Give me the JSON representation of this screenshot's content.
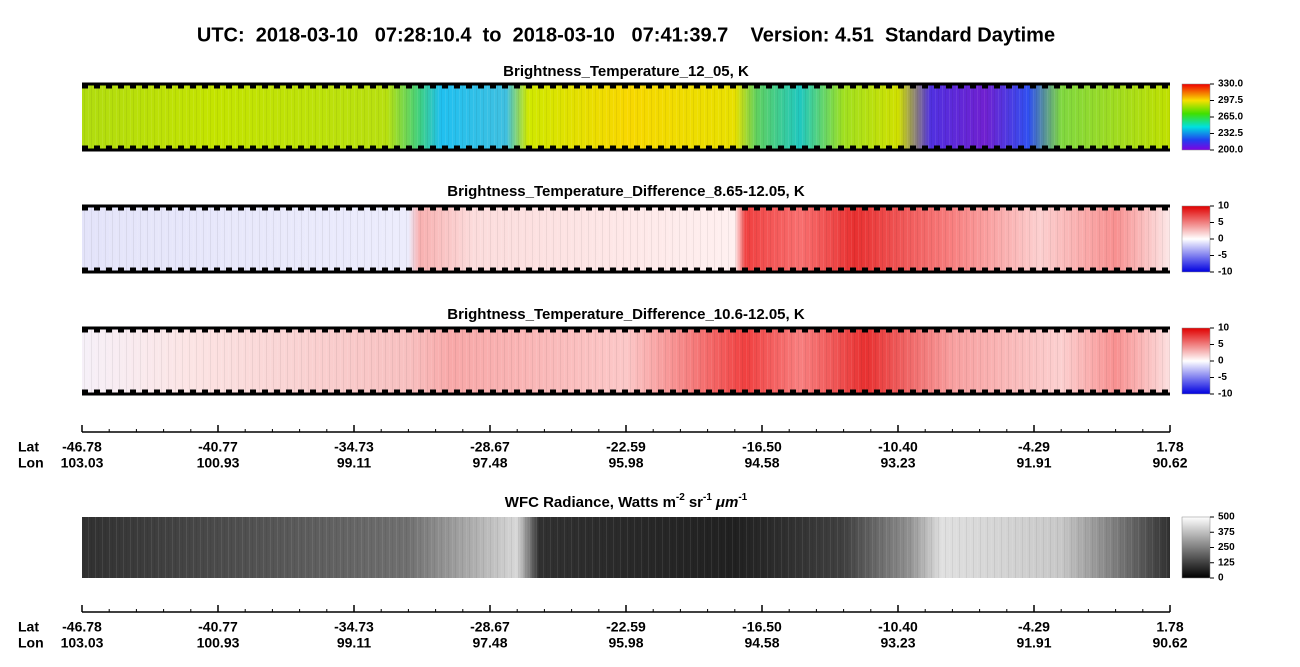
{
  "title": "UTC:  2018-03-10   07:28:10.4  to  2018-03-10   07:41:39.7    Version: 4.51  Standard Daytime",
  "panels": [
    {
      "title": "Brightness_Temperature_12_05, K",
      "colorbar": [
        "330.0",
        "297.5",
        "265.0",
        "232.5",
        "200.0"
      ]
    },
    {
      "title": "Brightness_Temperature_Difference_8.65-12.05, K",
      "colorbar": [
        "10",
        "5",
        "0",
        "-5",
        "-10"
      ]
    },
    {
      "title": "Brightness_Temperature_Difference_10.6-12.05, K",
      "colorbar": [
        "10",
        "5",
        "0",
        "-5",
        "-10"
      ]
    },
    {
      "title_parts": [
        "WFC Radiance, Watts m",
        "-2",
        "sr",
        "-1",
        "μm",
        "-1"
      ],
      "colorbar": [
        "500",
        "375",
        "250",
        "125",
        "0"
      ]
    }
  ],
  "axes": [
    {
      "lat_label": "Lat",
      "lon_label": "Lon",
      "lat": [
        "-46.78",
        "-40.77",
        "-34.73",
        "-28.67",
        "-22.59",
        "-16.50",
        "-10.40",
        "-4.29",
        "1.78"
      ],
      "lon": [
        "103.03",
        "100.93",
        "99.11",
        "97.48",
        "95.98",
        "94.58",
        "93.23",
        "91.91",
        "90.62"
      ]
    },
    {
      "lat_label": "Lat",
      "lon_label": "Lon",
      "lat": [
        "-46.78",
        "-40.77",
        "-34.73",
        "-28.67",
        "-22.59",
        "-16.50",
        "-10.40",
        "-4.29",
        "1.78"
      ],
      "lon": [
        "103.03",
        "100.93",
        "99.11",
        "97.48",
        "95.98",
        "94.58",
        "93.23",
        "91.91",
        "90.62"
      ]
    }
  ]
}
